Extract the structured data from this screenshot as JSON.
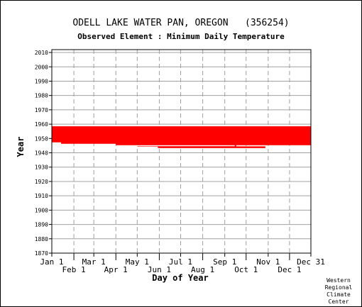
{
  "title": "ODELL LAKE WATER PAN, OREGON   (356254)",
  "subtitle": "Observed Element : Minimum Daily Temperature",
  "chart_data": {
    "type": "bar",
    "title": "ODELL LAKE WATER PAN, OREGON   (356254)",
    "subtitle": "Observed Element : Minimum Daily Temperature",
    "xlabel": "Day of Year",
    "ylabel": "Year",
    "xlim": [
      1,
      365
    ],
    "ylim": [
      1870,
      2012
    ],
    "grid": true,
    "x_ticks_upper": [
      {
        "label": "Jan 1",
        "day": 1
      },
      {
        "label": "Mar 1",
        "day": 60
      },
      {
        "label": "May 1",
        "day": 121
      },
      {
        "label": "Jul 1",
        "day": 182
      },
      {
        "label": "Sep 1",
        "day": 244
      },
      {
        "label": "Nov 1",
        "day": 305
      },
      {
        "label": "Dec 31",
        "day": 365
      }
    ],
    "x_ticks_lower": [
      {
        "label": "Feb 1",
        "day": 32
      },
      {
        "label": "Apr 1",
        "day": 91
      },
      {
        "label": "Jun 1",
        "day": 152
      },
      {
        "label": "Aug 1",
        "day": 213
      },
      {
        "label": "Oct 1",
        "day": 274
      },
      {
        "label": "Dec 1",
        "day": 335
      }
    ],
    "y_ticks": [
      2010,
      2000,
      1990,
      1980,
      1970,
      1960,
      1950,
      1940,
      1930,
      1920,
      1910,
      1900,
      1890,
      1880,
      1870
    ],
    "series": [
      {
        "color": "#ff0000",
        "segments": [
          {
            "year": 1958,
            "start": 1,
            "end": 365
          },
          {
            "year": 1957,
            "start": 1,
            "end": 365
          },
          {
            "year": 1956,
            "start": 1,
            "end": 365
          },
          {
            "year": 1955,
            "start": 1,
            "end": 365
          },
          {
            "year": 1954,
            "start": 1,
            "end": 365
          },
          {
            "year": 1953,
            "start": 1,
            "end": 365
          },
          {
            "year": 1952,
            "start": 1,
            "end": 365
          },
          {
            "year": 1951,
            "start": 1,
            "end": 365
          },
          {
            "year": 1950,
            "start": 1,
            "end": 365
          },
          {
            "year": 1949,
            "start": 1,
            "end": 365
          },
          {
            "year": 1948,
            "start": 1,
            "end": 365
          },
          {
            "year": 1947,
            "start": 14,
            "end": 365
          },
          {
            "year": 1946,
            "start": 91,
            "end": 365
          },
          {
            "year": 1945,
            "start": 121,
            "end": 259
          },
          {
            "year": 1944,
            "start": 150,
            "end": 300
          }
        ]
      }
    ],
    "gaps": [
      {
        "year": 1945,
        "start": 120,
        "end": 258
      },
      {
        "year": 1944,
        "start": 304,
        "end": 347
      }
    ]
  },
  "credit": [
    "Western",
    "Regional",
    "Climate",
    "Center"
  ]
}
